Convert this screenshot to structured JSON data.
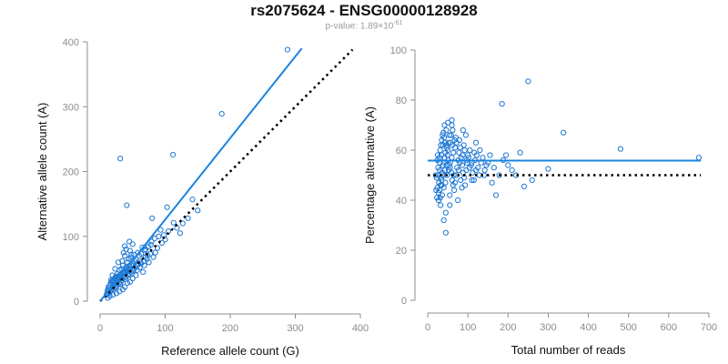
{
  "header": {
    "title": "rs2075624 - ENSG00000128928",
    "pvalue_prefix": "p-value: 1.89×10",
    "pvalue_exponent": "-61"
  },
  "colors": {
    "points": "#1f77d4",
    "fit_line": "#1a84e0",
    "reference_line": "#000000",
    "axis": "#8c8c8c",
    "tick_text": "#8c8c8c",
    "label_text": "#111111"
  },
  "chart_data": [
    {
      "type": "scatter",
      "title": "",
      "xlabel": "Reference allele count (G)",
      "ylabel": "Alternative allele count (A)",
      "xlim": [
        0,
        400
      ],
      "ylim": [
        0,
        400
      ],
      "xticks": [
        "0",
        "100",
        "200",
        "300",
        "400"
      ],
      "yticks": [
        "0",
        "100",
        "200",
        "300",
        "400"
      ],
      "grid": false,
      "fit_line": [
        [
          0,
          0
        ],
        [
          310,
          390
        ]
      ],
      "reference_line": [
        [
          0,
          0
        ],
        [
          388,
          388
        ]
      ],
      "points": [
        [
          288,
          388
        ],
        [
          187,
          289
        ],
        [
          112,
          226
        ],
        [
          31,
          220
        ],
        [
          41,
          148
        ],
        [
          142,
          157
        ],
        [
          103,
          145
        ],
        [
          80,
          128
        ],
        [
          113,
          121
        ],
        [
          123,
          105
        ],
        [
          90,
          100
        ],
        [
          100,
          95
        ],
        [
          78,
          87
        ],
        [
          65,
          83
        ],
        [
          70,
          80
        ],
        [
          85,
          75
        ],
        [
          50,
          88
        ],
        [
          45,
          92
        ],
        [
          38,
          85
        ],
        [
          60,
          70
        ],
        [
          55,
          65
        ],
        [
          48,
          72
        ],
        [
          42,
          60
        ],
        [
          35,
          55
        ],
        [
          58,
          58
        ],
        [
          52,
          50
        ],
        [
          44,
          48
        ],
        [
          40,
          52
        ],
        [
          36,
          45
        ],
        [
          30,
          40
        ],
        [
          28,
          35
        ],
        [
          32,
          30
        ],
        [
          25,
          28
        ],
        [
          22,
          25
        ],
        [
          20,
          22
        ],
        [
          18,
          20
        ],
        [
          26,
          32
        ],
        [
          24,
          38
        ],
        [
          30,
          48
        ],
        [
          34,
          62
        ],
        [
          38,
          70
        ],
        [
          46,
          78
        ],
        [
          62,
          60
        ],
        [
          68,
          55
        ],
        [
          72,
          65
        ],
        [
          55,
          40
        ],
        [
          50,
          35
        ],
        [
          46,
          30
        ],
        [
          42,
          28
        ],
        [
          38,
          22
        ],
        [
          35,
          18
        ],
        [
          30,
          15
        ],
        [
          25,
          12
        ],
        [
          20,
          10
        ],
        [
          15,
          8
        ],
        [
          12,
          12
        ],
        [
          14,
          18
        ],
        [
          16,
          25
        ],
        [
          18,
          30
        ],
        [
          22,
          35
        ],
        [
          27,
          42
        ],
        [
          33,
          50
        ],
        [
          40,
          38
        ],
        [
          44,
          42
        ],
        [
          48,
          55
        ],
        [
          53,
          62
        ],
        [
          57,
          48
        ],
        [
          61,
          52
        ],
        [
          66,
          45
        ],
        [
          75,
          60
        ],
        [
          82,
          68
        ],
        [
          88,
          82
        ],
        [
          95,
          90
        ],
        [
          40,
          80
        ],
        [
          36,
          75
        ],
        [
          28,
          60
        ],
        [
          23,
          50
        ],
        [
          19,
          40
        ],
        [
          17,
          33
        ],
        [
          13,
          22
        ],
        [
          11,
          15
        ],
        [
          10,
          10
        ],
        [
          12,
          5
        ],
        [
          15,
          14
        ],
        [
          17,
          17
        ],
        [
          21,
          19
        ],
        [
          24,
          21
        ],
        [
          26,
          24
        ],
        [
          29,
          27
        ],
        [
          31,
          26
        ],
        [
          34,
          33
        ],
        [
          37,
          36
        ],
        [
          39,
          34
        ],
        [
          43,
          40
        ],
        [
          47,
          45
        ],
        [
          49,
          43
        ],
        [
          51,
          47
        ],
        [
          54,
          52
        ],
        [
          56,
          55
        ],
        [
          59,
          57
        ],
        [
          63,
          58
        ],
        [
          67,
          62
        ],
        [
          70,
          68
        ],
        [
          73,
          71
        ],
        [
          77,
          73
        ],
        [
          20,
          30
        ],
        [
          24,
          33
        ],
        [
          27,
          37
        ],
        [
          30,
          38
        ],
        [
          32,
          42
        ],
        [
          35,
          44
        ],
        [
          38,
          47
        ],
        [
          41,
          50
        ],
        [
          45,
          55
        ],
        [
          12,
          18
        ],
        [
          14,
          22
        ],
        [
          16,
          28
        ],
        [
          19,
          32
        ],
        [
          21,
          28
        ],
        [
          23,
          30
        ],
        [
          25,
          35
        ],
        [
          28,
          32
        ],
        [
          31,
          36
        ],
        [
          33,
          39
        ],
        [
          36,
          40
        ],
        [
          39,
          43
        ],
        [
          42,
          46
        ],
        [
          46,
          50
        ],
        [
          50,
          58
        ],
        [
          44,
          65
        ],
        [
          47,
          68
        ],
        [
          52,
          72
        ],
        [
          58,
          75
        ],
        [
          63,
          73
        ],
        [
          69,
          78
        ],
        [
          74,
          84
        ],
        [
          79,
          92
        ],
        [
          84,
          97
        ],
        [
          93,
          110
        ],
        [
          98,
          102
        ],
        [
          105,
          108
        ],
        [
          118,
          113
        ],
        [
          127,
          120
        ],
        [
          135,
          128
        ],
        [
          150,
          140
        ]
      ]
    },
    {
      "type": "scatter",
      "title": "",
      "xlabel": "Total number of reads",
      "ylabel": "Percentage alternative (A)",
      "xlim": [
        0,
        700
      ],
      "ylim": [
        0,
        100
      ],
      "xticks": [
        "0",
        "100",
        "200",
        "300",
        "400",
        "500",
        "600",
        "700"
      ],
      "yticks": [
        "0",
        "20",
        "40",
        "60",
        "80",
        "100"
      ],
      "grid": false,
      "fit_line": [
        [
          0,
          55.8
        ],
        [
          680,
          55.8
        ]
      ],
      "reference_line": [
        [
          0,
          50
        ],
        [
          680,
          50
        ]
      ],
      "points": [
        [
          250,
          87.5
        ],
        [
          185,
          78.5
        ],
        [
          338,
          67
        ],
        [
          480,
          60.5
        ],
        [
          675,
          57
        ],
        [
          230,
          59
        ],
        [
          300,
          52.5
        ],
        [
          260,
          48
        ],
        [
          240,
          45.5
        ],
        [
          210,
          52
        ],
        [
          195,
          58
        ],
        [
          170,
          42
        ],
        [
          160,
          47
        ],
        [
          150,
          55
        ],
        [
          140,
          50
        ],
        [
          130,
          60
        ],
        [
          120,
          52
        ],
        [
          110,
          48
        ],
        [
          100,
          58
        ],
        [
          90,
          62
        ],
        [
          85,
          45
        ],
        [
          80,
          55
        ],
        [
          75,
          40
        ],
        [
          70,
          65
        ],
        [
          65,
          50
        ],
        [
          60,
          70
        ],
        [
          55,
          42
        ],
        [
          50,
          60
        ],
        [
          45,
          35
        ],
        [
          40,
          55
        ],
        [
          35,
          48
        ],
        [
          30,
          52
        ],
        [
          25,
          58
        ],
        [
          20,
          50
        ],
        [
          45,
          27
        ],
        [
          40,
          32
        ],
        [
          55,
          38
        ],
        [
          60,
          72
        ],
        [
          62,
          68
        ],
        [
          58,
          66
        ],
        [
          52,
          63
        ],
        [
          48,
          61
        ],
        [
          44,
          59
        ],
        [
          42,
          57
        ],
        [
          38,
          54
        ],
        [
          36,
          51
        ],
        [
          34,
          49
        ],
        [
          32,
          46
        ],
        [
          30,
          44
        ],
        [
          28,
          47
        ],
        [
          26,
          53
        ],
        [
          24,
          56
        ],
        [
          22,
          49
        ],
        [
          21,
          44
        ],
        [
          23,
          41
        ],
        [
          27,
          43
        ],
        [
          29,
          57
        ],
        [
          31,
          60
        ],
        [
          33,
          62
        ],
        [
          35,
          64
        ],
        [
          37,
          66
        ],
        [
          39,
          67
        ],
        [
          41,
          65
        ],
        [
          43,
          63
        ],
        [
          46,
          62
        ],
        [
          49,
          58
        ],
        [
          51,
          56
        ],
        [
          53,
          54
        ],
        [
          56,
          53
        ],
        [
          59,
          51
        ],
        [
          61,
          48
        ],
        [
          63,
          46
        ],
        [
          66,
          44
        ],
        [
          68,
          47
        ],
        [
          71,
          50
        ],
        [
          73,
          53
        ],
        [
          76,
          56
        ],
        [
          78,
          59
        ],
        [
          81,
          61
        ],
        [
          83,
          57
        ],
        [
          86,
          54
        ],
        [
          88,
          51
        ],
        [
          91,
          49
        ],
        [
          93,
          46
        ],
        [
          96,
          52
        ],
        [
          98,
          55
        ],
        [
          102,
          57
        ],
        [
          105,
          60
        ],
        [
          108,
          54
        ],
        [
          112,
          51
        ],
        [
          115,
          48
        ],
        [
          118,
          56
        ],
        [
          122,
          58
        ],
        [
          125,
          53
        ],
        [
          128,
          50
        ],
        [
          133,
          55
        ],
        [
          137,
          57
        ],
        [
          142,
          52
        ],
        [
          146,
          54
        ],
        [
          155,
          58
        ],
        [
          165,
          53
        ],
        [
          178,
          50
        ],
        [
          188,
          56
        ],
        [
          200,
          54
        ],
        [
          220,
          50
        ],
        [
          46,
          68
        ],
        [
          50,
          71
        ],
        [
          54,
          66
        ],
        [
          57,
          63
        ],
        [
          42,
          70
        ],
        [
          38,
          62
        ],
        [
          34,
          58
        ],
        [
          30,
          55
        ],
        [
          26,
          50
        ],
        [
          24,
          45
        ],
        [
          27,
          40
        ],
        [
          32,
          38
        ],
        [
          36,
          42
        ],
        [
          40,
          45
        ],
        [
          44,
          47
        ],
        [
          48,
          50
        ],
        [
          52,
          52
        ],
        [
          56,
          55
        ],
        [
          60,
          57
        ],
        [
          64,
          59
        ],
        [
          68,
          61
        ],
        [
          72,
          63
        ],
        [
          77,
          52
        ],
        [
          82,
          48
        ],
        [
          87,
          58
        ],
        [
          92,
          60
        ],
        [
          97,
          56
        ],
        [
          104,
          53
        ],
        [
          110,
          55
        ],
        [
          116,
          59
        ],
        [
          120,
          63
        ],
        [
          95,
          66
        ],
        [
          88,
          68
        ],
        [
          79,
          64
        ],
        [
          67,
          64
        ],
        [
          61,
          62
        ],
        [
          47,
          54
        ],
        [
          43,
          52
        ],
        [
          39,
          50
        ],
        [
          35,
          46
        ],
        [
          31,
          41
        ]
      ]
    }
  ]
}
